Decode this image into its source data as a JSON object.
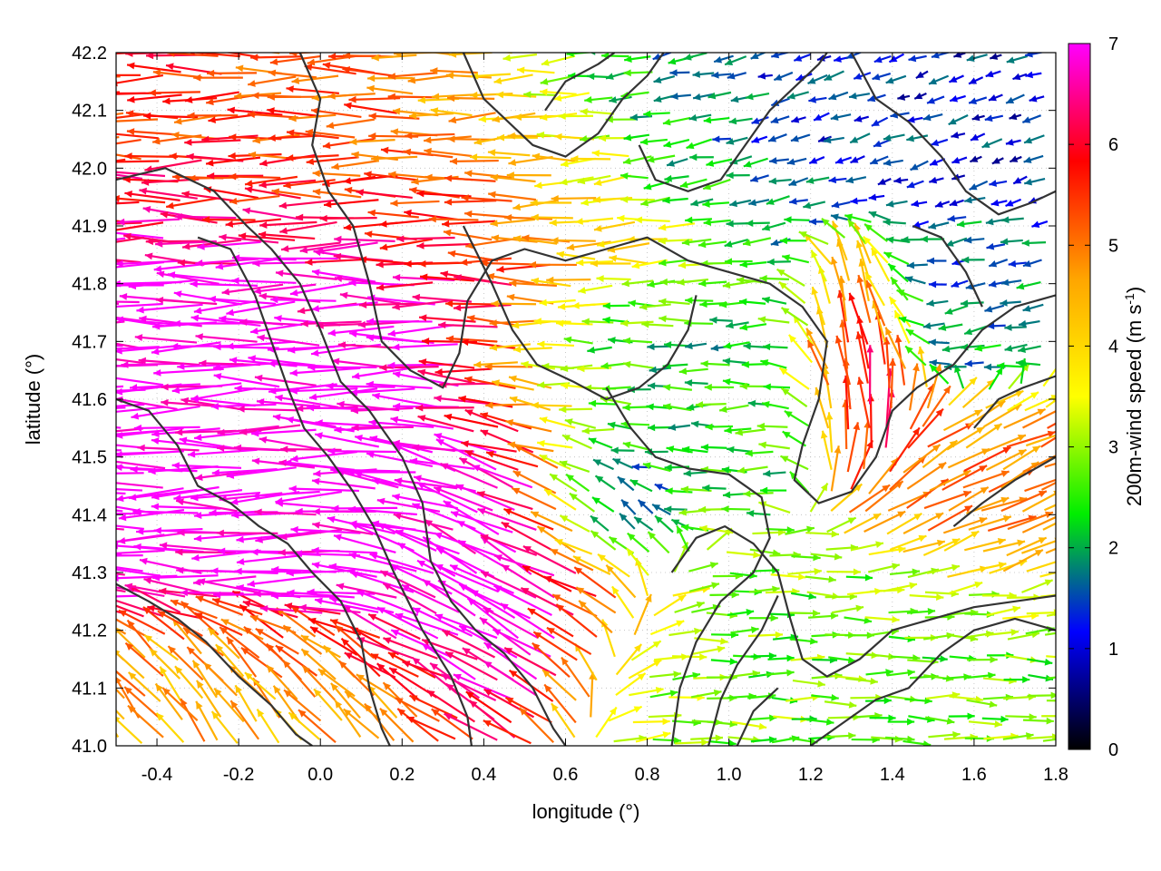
{
  "chart_data": {
    "type": "vector-field",
    "xlabel": "longitude (°)",
    "ylabel": "latitude (°)",
    "xlim": [
      -0.5,
      1.8
    ],
    "ylim": [
      41.0,
      42.2
    ],
    "xticks": [
      "-0.4",
      "-0.2",
      "0.0",
      "0.2",
      "0.4",
      "0.6",
      "0.8",
      "1.0",
      "1.2",
      "1.4",
      "1.6",
      "1.8"
    ],
    "yticks": [
      "41.0",
      "41.1",
      "41.2",
      "41.3",
      "41.4",
      "41.5",
      "41.6",
      "41.7",
      "41.8",
      "41.9",
      "42.0",
      "42.1",
      "42.2"
    ],
    "grid": true,
    "colorbar": {
      "label": "200m-wind speed (m s",
      "label_sup": "-1",
      "label_end": ")",
      "range": [
        0,
        7
      ],
      "ticks": [
        "0",
        "1",
        "2",
        "3",
        "4",
        "5",
        "6",
        "7"
      ],
      "colors": [
        "#000000",
        "#0000ff",
        "#00ee00",
        "#ffff00",
        "#ffa500",
        "#ff0000",
        "#ff00ff"
      ]
    },
    "wind_regions": [
      {
        "region": "west, 41.15-41.95 lat",
        "direction": "westward",
        "speed": 7
      },
      {
        "region": "north-west band 41.85-42.2 lat",
        "direction": "westward",
        "speed": 5.5
      },
      {
        "region": "south-west 41.0-41.2 lat",
        "direction": "north-westward",
        "speed": 4
      },
      {
        "region": "central 0.3-0.7 lon, 41.2-41.5 lat",
        "direction": "north-westward",
        "speed": 7
      },
      {
        "region": "central 0.6-1.1 lon, 41.5-41.75 lat",
        "direction": "westward",
        "speed": 2
      },
      {
        "region": "north-east 0.7-1.8 lon, 41.9-42.2 lat",
        "direction": "variable",
        "speed": 1
      },
      {
        "region": "east 1.25-1.45 lon, 41.55-41.8 lat",
        "direction": "northward",
        "speed": 6.5
      },
      {
        "region": "east 1.5-1.8 lon, 41.3-41.55 lat",
        "direction": "north-eastward",
        "speed": 5
      },
      {
        "region": "south-east 0.9-1.8 lon, 41.0-41.3 lat",
        "direction": "eastward",
        "speed": 2.5
      }
    ],
    "contours": [
      [
        [
          -0.5,
          41.98
        ],
        [
          -0.38,
          42.0
        ],
        [
          -0.26,
          41.96
        ],
        [
          -0.18,
          41.9
        ],
        [
          -0.12,
          41.86
        ],
        [
          -0.05,
          41.8
        ],
        [
          0.0,
          41.72
        ],
        [
          0.05,
          41.63
        ],
        [
          0.12,
          41.58
        ],
        [
          0.2,
          41.5
        ],
        [
          0.25,
          41.42
        ],
        [
          0.27,
          41.32
        ],
        [
          0.32,
          41.25
        ],
        [
          0.38,
          41.2
        ],
        [
          0.45,
          41.16
        ],
        [
          0.52,
          41.1
        ],
        [
          0.57,
          41.03
        ],
        [
          0.6,
          41.0
        ]
      ],
      [
        [
          -0.3,
          41.88
        ],
        [
          -0.22,
          41.86
        ],
        [
          -0.16,
          41.78
        ],
        [
          -0.12,
          41.7
        ],
        [
          -0.08,
          41.62
        ],
        [
          -0.04,
          41.55
        ],
        [
          0.02,
          41.5
        ],
        [
          0.08,
          41.44
        ],
        [
          0.13,
          41.38
        ],
        [
          0.18,
          41.3
        ],
        [
          0.25,
          41.2
        ],
        [
          0.32,
          41.12
        ],
        [
          0.36,
          41.05
        ],
        [
          0.37,
          41.0
        ]
      ],
      [
        [
          -0.5,
          41.6
        ],
        [
          -0.42,
          41.58
        ],
        [
          -0.35,
          41.52
        ],
        [
          -0.3,
          41.45
        ],
        [
          -0.22,
          41.42
        ],
        [
          -0.15,
          41.38
        ],
        [
          -0.08,
          41.35
        ],
        [
          -0.02,
          41.3
        ],
        [
          0.05,
          41.25
        ],
        [
          0.1,
          41.18
        ],
        [
          0.12,
          41.1
        ],
        [
          0.15,
          41.03
        ],
        [
          0.17,
          41.0
        ]
      ],
      [
        [
          -0.5,
          41.28
        ],
        [
          -0.42,
          41.25
        ],
        [
          -0.35,
          41.22
        ],
        [
          -0.28,
          41.18
        ],
        [
          -0.2,
          41.12
        ],
        [
          -0.12,
          41.07
        ],
        [
          -0.06,
          41.02
        ],
        [
          -0.02,
          41.0
        ]
      ],
      [
        [
          -0.05,
          42.2
        ],
        [
          0.0,
          42.12
        ],
        [
          -0.02,
          42.04
        ],
        [
          0.02,
          41.96
        ],
        [
          0.08,
          41.9
        ],
        [
          0.12,
          41.8
        ],
        [
          0.15,
          41.7
        ],
        [
          0.22,
          41.65
        ],
        [
          0.3,
          41.62
        ],
        [
          0.34,
          41.68
        ],
        [
          0.36,
          41.77
        ],
        [
          0.42,
          41.84
        ],
        [
          0.5,
          41.86
        ],
        [
          0.6,
          41.84
        ],
        [
          0.7,
          41.86
        ],
        [
          0.8,
          41.88
        ],
        [
          0.9,
          41.84
        ],
        [
          1.0,
          41.82
        ],
        [
          1.1,
          41.8
        ],
        [
          1.18,
          41.76
        ],
        [
          1.24,
          41.7
        ],
        [
          1.22,
          41.6
        ],
        [
          1.18,
          41.52
        ],
        [
          1.16,
          41.46
        ],
        [
          1.22,
          41.42
        ],
        [
          1.3,
          41.44
        ],
        [
          1.36,
          41.5
        ],
        [
          1.4,
          41.58
        ],
        [
          1.46,
          41.62
        ],
        [
          1.55,
          41.66
        ],
        [
          1.62,
          41.72
        ],
        [
          1.7,
          41.76
        ],
        [
          1.8,
          41.78
        ]
      ],
      [
        [
          0.35,
          41.9
        ],
        [
          0.42,
          41.8
        ],
        [
          0.47,
          41.72
        ],
        [
          0.53,
          41.66
        ],
        [
          0.62,
          41.63
        ],
        [
          0.7,
          41.6
        ],
        [
          0.78,
          41.62
        ],
        [
          0.85,
          41.66
        ],
        [
          0.9,
          41.72
        ],
        [
          0.92,
          41.78
        ]
      ],
      [
        [
          0.7,
          41.62
        ],
        [
          0.76,
          41.55
        ],
        [
          0.82,
          41.5
        ],
        [
          0.9,
          41.48
        ],
        [
          1.0,
          41.47
        ],
        [
          1.08,
          41.43
        ],
        [
          1.1,
          41.36
        ],
        [
          1.06,
          41.3
        ],
        [
          0.98,
          41.25
        ],
        [
          0.92,
          41.18
        ],
        [
          0.88,
          41.1
        ],
        [
          0.86,
          41.0
        ]
      ],
      [
        [
          0.86,
          41.3
        ],
        [
          0.92,
          41.36
        ],
        [
          0.99,
          41.38
        ],
        [
          1.06,
          41.35
        ],
        [
          1.12,
          41.3
        ],
        [
          1.15,
          41.22
        ],
        [
          1.18,
          41.15
        ],
        [
          1.24,
          41.12
        ],
        [
          1.32,
          41.15
        ],
        [
          1.4,
          41.2
        ],
        [
          1.5,
          41.22
        ],
        [
          1.6,
          41.24
        ],
        [
          1.7,
          41.25
        ],
        [
          1.8,
          41.26
        ]
      ],
      [
        [
          0.95,
          41.0
        ],
        [
          0.98,
          41.08
        ],
        [
          1.02,
          41.14
        ],
        [
          1.08,
          41.2
        ],
        [
          1.12,
          41.26
        ]
      ],
      [
        [
          1.02,
          41.0
        ],
        [
          1.06,
          41.06
        ],
        [
          1.12,
          41.1
        ]
      ],
      [
        [
          1.2,
          41.0
        ],
        [
          1.28,
          41.04
        ],
        [
          1.36,
          41.08
        ],
        [
          1.44,
          41.1
        ],
        [
          1.52,
          41.16
        ],
        [
          1.6,
          41.2
        ],
        [
          1.7,
          41.22
        ],
        [
          1.8,
          41.2
        ]
      ],
      [
        [
          0.35,
          42.2
        ],
        [
          0.4,
          42.12
        ],
        [
          0.46,
          42.08
        ],
        [
          0.52,
          42.04
        ],
        [
          0.6,
          42.02
        ],
        [
          0.68,
          42.06
        ],
        [
          0.74,
          42.12
        ],
        [
          0.8,
          42.16
        ],
        [
          0.84,
          42.2
        ]
      ],
      [
        [
          0.78,
          42.04
        ],
        [
          0.82,
          41.98
        ],
        [
          0.9,
          41.96
        ],
        [
          0.98,
          41.98
        ],
        [
          1.04,
          42.04
        ],
        [
          1.1,
          42.1
        ],
        [
          1.16,
          42.14
        ],
        [
          1.22,
          42.18
        ],
        [
          1.24,
          42.2
        ]
      ],
      [
        [
          1.3,
          42.2
        ],
        [
          1.36,
          42.12
        ],
        [
          1.44,
          42.08
        ],
        [
          1.52,
          42.02
        ],
        [
          1.58,
          41.96
        ],
        [
          1.66,
          41.92
        ],
        [
          1.74,
          41.94
        ],
        [
          1.8,
          41.96
        ]
      ],
      [
        [
          1.45,
          41.9
        ],
        [
          1.52,
          41.88
        ],
        [
          1.58,
          41.82
        ],
        [
          1.62,
          41.76
        ]
      ],
      [
        [
          0.55,
          42.1
        ],
        [
          0.6,
          42.15
        ],
        [
          0.68,
          42.18
        ],
        [
          0.72,
          42.2
        ]
      ],
      [
        [
          1.6,
          41.55
        ],
        [
          1.66,
          41.6
        ],
        [
          1.72,
          41.62
        ],
        [
          1.8,
          41.64
        ]
      ],
      [
        [
          1.55,
          41.38
        ],
        [
          1.62,
          41.42
        ],
        [
          1.7,
          41.46
        ],
        [
          1.8,
          41.5
        ]
      ]
    ]
  }
}
